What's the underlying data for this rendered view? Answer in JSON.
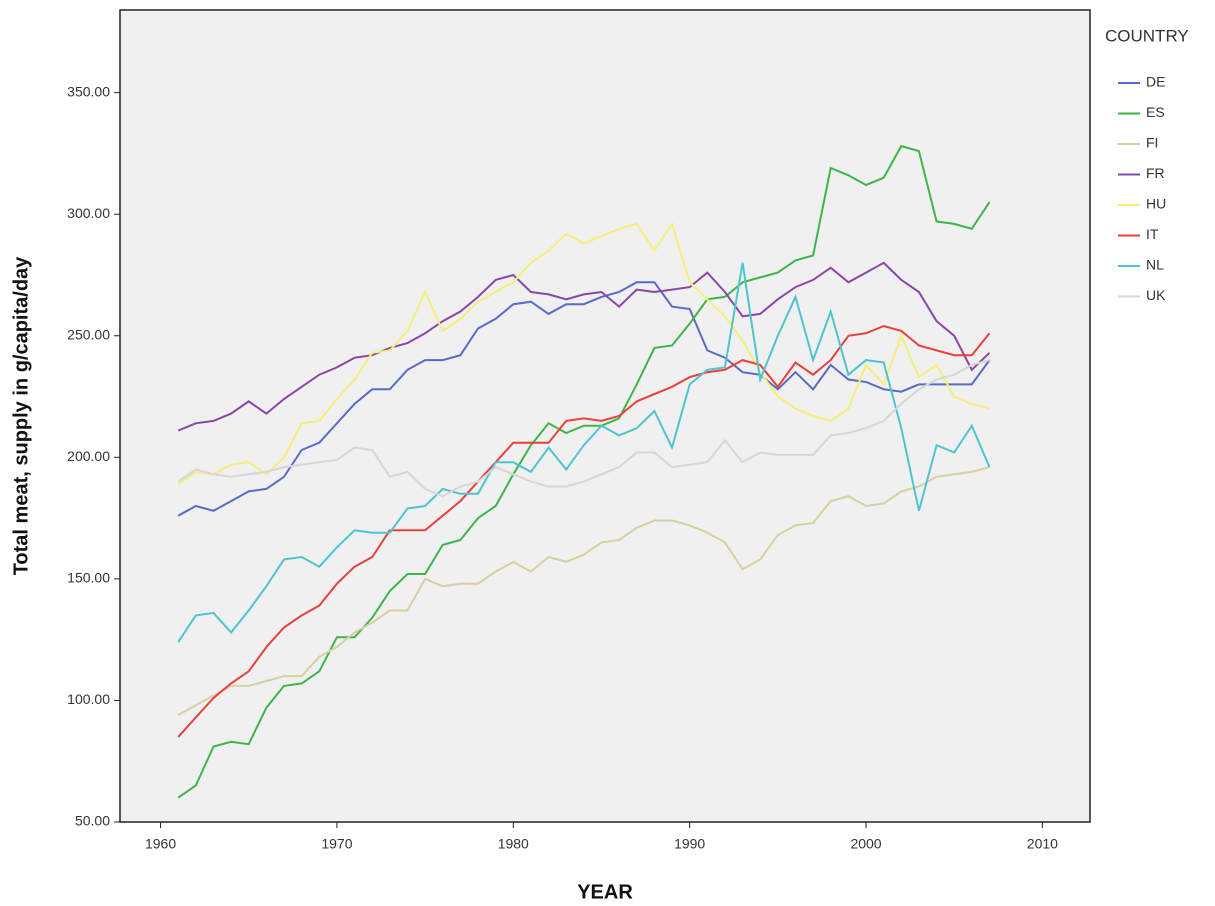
{
  "chart_data": {
    "type": "line",
    "xlabel": "YEAR",
    "ylabel": "Total meat, supply in g/capita/day",
    "legend_title": "COUNTRY",
    "legend": "right",
    "grid": false,
    "x": [
      1961,
      1962,
      1963,
      1964,
      1965,
      1966,
      1967,
      1968,
      1969,
      1970,
      1971,
      1972,
      1973,
      1974,
      1975,
      1976,
      1977,
      1978,
      1979,
      1980,
      1981,
      1982,
      1983,
      1984,
      1985,
      1986,
      1987,
      1988,
      1989,
      1990,
      1991,
      1992,
      1993,
      1994,
      1995,
      1996,
      1997,
      1998,
      1999,
      2000,
      2001,
      2002,
      2003,
      2004,
      2005,
      2006,
      2007
    ],
    "xlim": [
      1957.7,
      2012.7
    ],
    "xticks": [
      1960,
      1970,
      1980,
      1990,
      2000,
      2010
    ],
    "ylim": [
      50,
      384
    ],
    "yticks": [
      {
        "value": 50,
        "label": "50.00"
      },
      {
        "value": 100,
        "label": "100.00"
      },
      {
        "value": 150,
        "label": "150.00"
      },
      {
        "value": 200,
        "label": "200.00"
      },
      {
        "value": 250,
        "label": "250.00"
      },
      {
        "value": 300,
        "label": "300.00"
      },
      {
        "value": 350,
        "label": "350.00"
      }
    ],
    "series": [
      {
        "name": "DE",
        "color": "#5a6bc4",
        "values": [
          176,
          180,
          178,
          182,
          186,
          187,
          192,
          203,
          206,
          214,
          222,
          228,
          228,
          236,
          240,
          240,
          242,
          253,
          257,
          263,
          264,
          259,
          263,
          263,
          266,
          268,
          272,
          272,
          262,
          261,
          244,
          241,
          235,
          234,
          228,
          235,
          228,
          238,
          232,
          231,
          228,
          227,
          230,
          230,
          230,
          230,
          240
        ]
      },
      {
        "name": "ES",
        "color": "#3cb54a",
        "values": [
          60,
          65,
          81,
          83,
          82,
          97,
          106,
          107,
          112,
          126,
          126,
          134,
          145,
          152,
          152,
          164,
          166,
          175,
          180,
          193,
          205,
          214,
          210,
          213,
          213,
          216,
          230,
          245,
          246,
          255,
          265,
          266,
          272,
          274,
          276,
          281,
          283,
          319,
          316,
          312,
          315,
          328,
          326,
          297,
          296,
          294,
          305
        ]
      },
      {
        "name": "FI",
        "color": "#d8cfa0",
        "values": [
          94,
          98,
          102,
          106,
          106,
          108,
          110,
          110,
          118,
          122,
          128,
          132,
          137,
          137,
          150,
          147,
          148,
          148,
          153,
          157,
          153,
          159,
          157,
          160,
          165,
          166,
          171,
          174,
          174,
          172,
          169,
          165,
          154,
          158,
          168,
          172,
          173,
          182,
          184,
          180,
          181,
          186,
          188,
          192,
          193,
          194,
          196
        ]
      },
      {
        "name": "FR",
        "color": "#8a47a8",
        "values": [
          211,
          214,
          215,
          218,
          223,
          218,
          224,
          229,
          234,
          237,
          241,
          242,
          245,
          247,
          251,
          256,
          260,
          266,
          273,
          275,
          268,
          267,
          265,
          267,
          268,
          262,
          269,
          268,
          269,
          270,
          276,
          268,
          258,
          259,
          265,
          270,
          273,
          278,
          272,
          276,
          280,
          273,
          268,
          256,
          250,
          236,
          243
        ]
      },
      {
        "name": "HU",
        "color": "#f5ee7a",
        "values": [
          189,
          194,
          193,
          197,
          198,
          193,
          200,
          214,
          215,
          224,
          232,
          243,
          244,
          252,
          268,
          252,
          257,
          264,
          268,
          272,
          280,
          285,
          292,
          288,
          291,
          294,
          296,
          285,
          296,
          272,
          265,
          258,
          248,
          235,
          225,
          220,
          217,
          215,
          220,
          238,
          230,
          250,
          233,
          238,
          225,
          222,
          220
        ]
      },
      {
        "name": "IT",
        "color": "#e8403a",
        "values": [
          85,
          93,
          101,
          107,
          112,
          122,
          130,
          135,
          139,
          148,
          155,
          159,
          170,
          170,
          170,
          176,
          182,
          190,
          198,
          206,
          206,
          206,
          215,
          216,
          215,
          217,
          223,
          226,
          229,
          233,
          235,
          236,
          240,
          238,
          229,
          239,
          234,
          240,
          250,
          251,
          254,
          252,
          246,
          244,
          242,
          242,
          251
        ]
      },
      {
        "name": "NL",
        "color": "#4ec4cf",
        "values": [
          124,
          135,
          136,
          128,
          137,
          147,
          158,
          159,
          155,
          163,
          170,
          169,
          169,
          179,
          180,
          187,
          185,
          185,
          198,
          198,
          194,
          204,
          195,
          205,
          213,
          209,
          212,
          219,
          204,
          230,
          236,
          237,
          280,
          232,
          250,
          266,
          240,
          260,
          234,
          240,
          239,
          212,
          178,
          205,
          202,
          213,
          196
        ]
      },
      {
        "name": "UK",
        "color": "#d6d6d6",
        "values": [
          190,
          195,
          193,
          192,
          193,
          194,
          196,
          197,
          198,
          199,
          204,
          203,
          192,
          194,
          187,
          184,
          188,
          190,
          196,
          193,
          190,
          188,
          188,
          190,
          193,
          196,
          202,
          202,
          196,
          197,
          198,
          207,
          198,
          202,
          201,
          201,
          201,
          209,
          210,
          212,
          215,
          222,
          228,
          232,
          234,
          238,
          240
        ]
      }
    ]
  }
}
